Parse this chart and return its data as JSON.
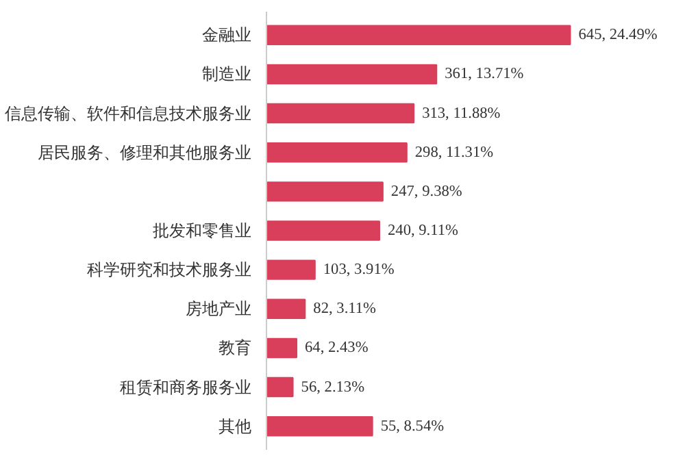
{
  "chart_data": {
    "type": "bar",
    "orientation": "horizontal",
    "categories": [
      "金融业",
      "制造业",
      "信息传输、软件和信息技术服务业",
      "居民服务、修理和其他服务业",
      null,
      "批发和零售业",
      "科学研究和技术服务业",
      "房地产业",
      "教育",
      "租赁和商务服务业",
      "其他"
    ],
    "values": [
      24.49,
      13.71,
      11.88,
      11.31,
      9.38,
      9.11,
      3.91,
      3.11,
      2.43,
      2.13,
      8.54
    ],
    "value_labels": [
      "645, 24.49%",
      "361, 13.71%",
      "313, 11.88%",
      "298, 11.31%",
      "247, 9.38%",
      "240, 9.11%",
      "103, 3.91%",
      "82, 3.11%",
      "64, 2.43%",
      "56, 2.13%",
      "55, 8.54%"
    ],
    "color": "#d93f5a",
    "tick_labels": "y",
    "grid": false
  }
}
